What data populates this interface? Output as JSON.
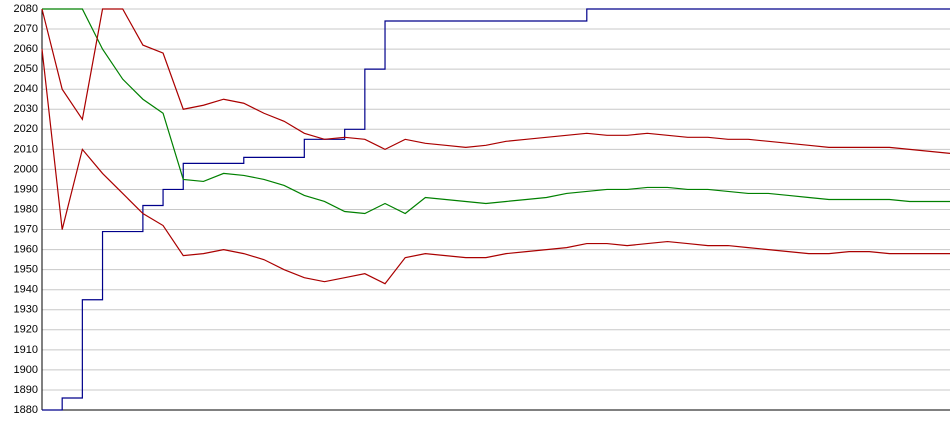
{
  "chart_data": {
    "type": "line",
    "categories": [
      null,
      null,
      null,
      null,
      null,
      null,
      null,
      null,
      null,
      null,
      null,
      null,
      null,
      null,
      null,
      null,
      null,
      null,
      null,
      null,
      null,
      null,
      null,
      null,
      null,
      null,
      null,
      null,
      null,
      null,
      null,
      null,
      null,
      null,
      null,
      null,
      null,
      null,
      null,
      null,
      null,
      null,
      null,
      null,
      null,
      null
    ],
    "ylim": [
      1880,
      2080
    ],
    "yticks": [
      1880,
      1890,
      1900,
      1910,
      1920,
      1930,
      1940,
      1950,
      1960,
      1970,
      1980,
      1990,
      2000,
      2010,
      2020,
      2030,
      2040,
      2050,
      2060,
      2070,
      2080
    ],
    "grid": true,
    "series": [
      {
        "color": "#00008b",
        "step": true,
        "values": [
          1880,
          1886,
          1935,
          1969,
          1969,
          1982,
          1990,
          2003,
          2003,
          2003,
          2006,
          2006,
          2006,
          2015,
          2015,
          2020,
          2050,
          2074,
          2074,
          2074,
          2074,
          2074,
          2074,
          2074,
          2074,
          2074,
          2074,
          2080,
          2080,
          2080,
          2080,
          2080,
          2080,
          2080,
          2080,
          2080,
          2080,
          2080,
          2080,
          2080,
          2080,
          2080,
          2080,
          2080,
          2080,
          2080
        ]
      },
      {
        "color": "#008000",
        "values": [
          2080,
          2080,
          2080,
          2060,
          2045,
          2035,
          2028,
          1995,
          1994,
          1998,
          1997,
          1995,
          1992,
          1987,
          1984,
          1979,
          1978,
          1983,
          1978,
          1986,
          1985,
          1984,
          1983,
          1984,
          1985,
          1986,
          1988,
          1989,
          1990,
          1990,
          1991,
          1991,
          1990,
          1990,
          1989,
          1988,
          1988,
          1987,
          1986,
          1985,
          1985,
          1985,
          1985,
          1984,
          1984,
          1984
        ]
      },
      {
        "color": "#aa0000",
        "values": [
          2080,
          2040,
          2025,
          2080,
          2080,
          2062,
          2058,
          2030,
          2032,
          2035,
          2033,
          2028,
          2024,
          2018,
          2015,
          2016,
          2015,
          2010,
          2015,
          2013,
          2012,
          2011,
          2012,
          2014,
          2015,
          2016,
          2017,
          2018,
          2017,
          2017,
          2018,
          2017,
          2016,
          2016,
          2015,
          2015,
          2014,
          2013,
          2012,
          2011,
          2011,
          2011,
          2011,
          2010,
          2009,
          2008
        ]
      },
      {
        "color": "#aa0000",
        "values": [
          2060,
          1970,
          2010,
          1998,
          1988,
          1978,
          1972,
          1957,
          1958,
          1960,
          1958,
          1955,
          1950,
          1946,
          1944,
          1946,
          1948,
          1943,
          1956,
          1958,
          1957,
          1956,
          1956,
          1958,
          1959,
          1960,
          1961,
          1963,
          1963,
          1962,
          1963,
          1964,
          1963,
          1962,
          1962,
          1961,
          1960,
          1959,
          1958,
          1958,
          1959,
          1959,
          1958,
          1958,
          1958,
          1958
        ]
      }
    ]
  }
}
